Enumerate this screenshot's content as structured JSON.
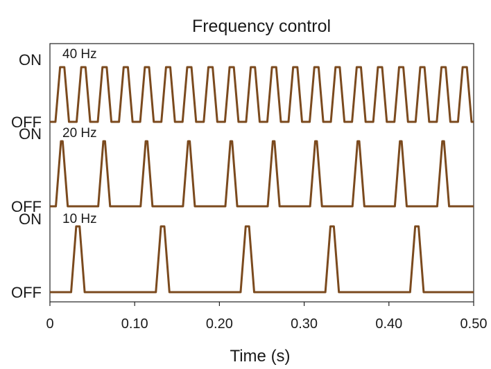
{
  "chart_data": {
    "type": "line",
    "title": "Frequency control",
    "xlabel": "Time (s)",
    "ylabel": "",
    "xlim": [
      0,
      0.5
    ],
    "x_ticks": [
      0,
      0.1,
      0.2,
      0.3,
      0.4,
      0.5
    ],
    "x_tick_labels": [
      "0",
      "0.10",
      "0.20",
      "0.30",
      "0.40",
      "0.50"
    ],
    "y_states": [
      "ON",
      "OFF"
    ],
    "line_color": "#7b4a1e",
    "grid": false,
    "series": [
      {
        "name": "40 Hz",
        "frequency_hz": 40,
        "first_on_s": 0.012,
        "on_duration_s": 0.005,
        "ramp_s": 0.0055
      },
      {
        "name": "20 Hz",
        "frequency_hz": 20,
        "first_on_s": 0.013,
        "on_duration_s": 0.002,
        "ramp_s": 0.006
      },
      {
        "name": "10 Hz",
        "frequency_hz": 10,
        "first_on_s": 0.031,
        "on_duration_s": 0.004,
        "ramp_s": 0.006
      }
    ]
  }
}
